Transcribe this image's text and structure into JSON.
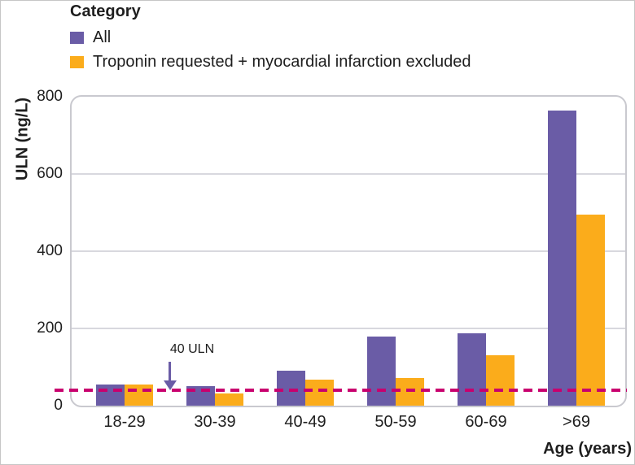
{
  "legend": {
    "title": "Category",
    "items": [
      {
        "label": "All",
        "color": "#6a5ca6"
      },
      {
        "label": "Troponin requested + myocardial infarction excluded",
        "color": "#fbac1b"
      }
    ]
  },
  "annotation": {
    "text": "40 ULN"
  },
  "chart_data": {
    "type": "bar",
    "title": "",
    "categories": [
      "18-29",
      "30-39",
      "40-49",
      "50-59",
      "60-69",
      ">69"
    ],
    "series": [
      {
        "name": "All",
        "color": "#6a5ca6",
        "values": [
          55,
          51,
          90,
          180,
          188,
          765
        ]
      },
      {
        "name": "Troponin requested + myocardial infarction excluded",
        "color": "#fbac1b",
        "values": [
          54,
          32,
          68,
          72,
          130,
          495
        ]
      }
    ],
    "xlabel": "Age (years)",
    "ylabel": "ULN (ng/L)",
    "ylim": [
      0,
      800
    ],
    "yticks": [
      0,
      200,
      400,
      600,
      800
    ],
    "grid": true,
    "legend_position": "top-left",
    "reference_line": {
      "value": 40,
      "label": "40 ULN",
      "color": "#c8006e",
      "style": "dashed"
    }
  },
  "colors": {
    "grid": "#d8d8de",
    "plot_border": "#c9c9cf",
    "arrow": "#6a5ca6",
    "text": "#1e1e1e",
    "background": "#ffffff"
  }
}
